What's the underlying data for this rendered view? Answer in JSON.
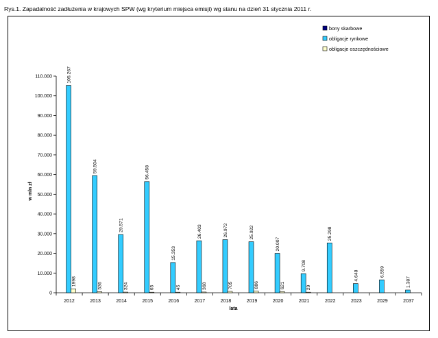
{
  "figure_title": "Rys.1. Zapadalność zadłużenia w krajowych SPW (wg kryterium miejsca emisji) wg stanu na dzień 31 stycznia 2011 r.",
  "chart_data": {
    "type": "bar",
    "title": "Rys.1. Zapadalność zadłużenia w krajowych SPW (wg kryterium miejsca emisji) wg stanu na dzień 31 stycznia 2011 r.",
    "xlabel": "lata",
    "ylabel": "w mln zł",
    "ylim": [
      0,
      110000
    ],
    "yticks": [
      0,
      10000,
      20000,
      30000,
      40000,
      50000,
      60000,
      70000,
      80000,
      90000,
      100000,
      110000
    ],
    "ytick_labels": [
      "0",
      "10.000",
      "20.000",
      "30.000",
      "40.000",
      "50.000",
      "60.000",
      "70.000",
      "80.000",
      "90.000",
      "100.000",
      "110.000"
    ],
    "categories": [
      "2012",
      "2013",
      "2014",
      "2015",
      "2016",
      "2017",
      "2018",
      "2019",
      "2020",
      "2021",
      "2022",
      "2023",
      "2029",
      "2037"
    ],
    "legend_position": "top-right",
    "grid": false,
    "series": [
      {
        "name": "bony skarbowe",
        "color": "#000080",
        "values": [
          0,
          0,
          0,
          0,
          0,
          0,
          0,
          0,
          0,
          0,
          0,
          0,
          0,
          0
        ],
        "labels": []
      },
      {
        "name": "obligacje rynkowe",
        "color": "#33ccff",
        "values": [
          105267,
          59504,
          29571,
          56458,
          15353,
          26403,
          26972,
          25922,
          20007,
          9708,
          25298,
          4648,
          6559,
          1387
        ],
        "labels": [
          "105.267",
          "59.504",
          "29.571",
          "56.458",
          "15.353",
          "26.403",
          "26.972",
          "25.922",
          "20.007",
          "9.708",
          "25.298",
          "4.648",
          "6.559",
          "1.387"
        ]
      },
      {
        "name": "obligacje oszczędnościowe",
        "color": "#ffffcc",
        "values": [
          1998,
          536,
          324,
          65,
          45,
          368,
          705,
          886,
          621,
          29,
          null,
          null,
          null,
          null
        ],
        "labels": [
          "1998",
          "536",
          "324",
          "65",
          "45",
          "368",
          "705",
          "886",
          "621",
          "29",
          null,
          null,
          null,
          null
        ]
      }
    ]
  }
}
